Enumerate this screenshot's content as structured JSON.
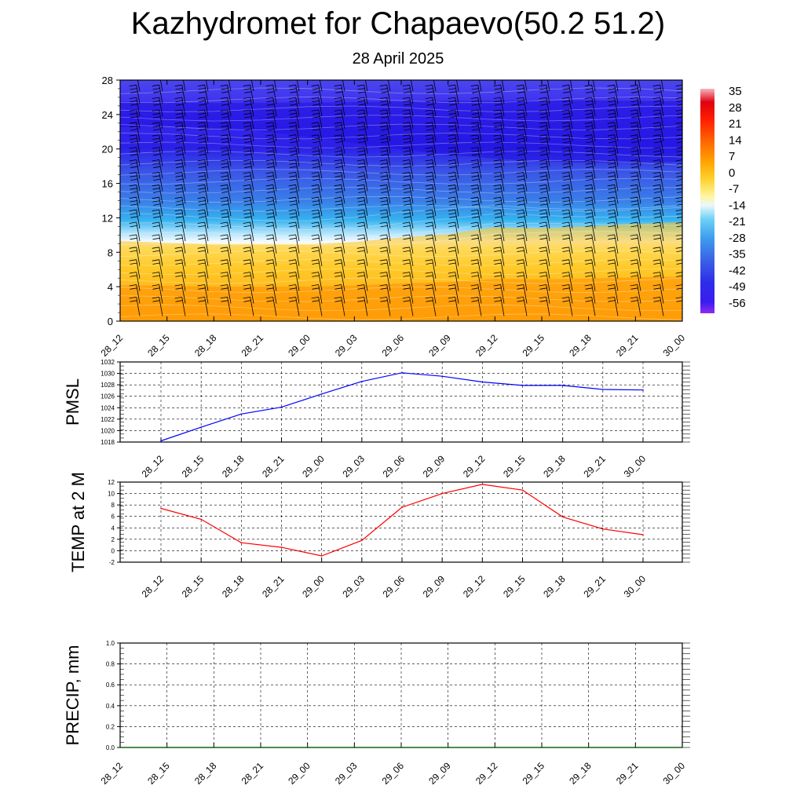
{
  "header": {
    "title": "Kazhydromet for Chapaevo(50.2 51.2)",
    "subtitle": "28 April 2025"
  },
  "time_labels": [
    "28_12",
    "28_15",
    "28_18",
    "28_21",
    "29_00",
    "29_03",
    "29_06",
    "29_09",
    "29_12",
    "29_15",
    "29_18",
    "29_21",
    "30_00"
  ],
  "chart_data": [
    {
      "type": "heatmap",
      "name": "cross-section",
      "title": "",
      "xlabel": "",
      "ylabel": "",
      "categories": [
        "28_12",
        "28_15",
        "28_18",
        "28_21",
        "29_00",
        "29_03",
        "29_06",
        "29_09",
        "29_12",
        "29_15",
        "29_18",
        "29_21",
        "30_00"
      ],
      "yticks": [
        0,
        4,
        8,
        12,
        16,
        20,
        24,
        28
      ],
      "ylim": [
        0,
        28
      ],
      "zero_isotherm_height": [
        9.3,
        9.1,
        8.9,
        8.9,
        8.9,
        9.2,
        9.7,
        10.1,
        10.9,
        10.8,
        11.0,
        11.3,
        11.5
      ],
      "colorbar": {
        "labels": [
          "35",
          "28",
          "21",
          "14",
          "7",
          "0",
          "-7",
          "-14",
          "-21",
          "-28",
          "-35",
          "-42",
          "-49",
          "-56"
        ],
        "levels": [
          35,
          28,
          21,
          14,
          7,
          0,
          -7,
          -14,
          -21,
          -28,
          -35,
          -42,
          -49,
          -56
        ]
      },
      "wind_barbs": true
    },
    {
      "type": "line",
      "name": "pmsl",
      "ylabel": "PMSL",
      "categories": [
        "28_12",
        "28_15",
        "28_18",
        "28_21",
        "29_00",
        "29_03",
        "29_06",
        "29_09",
        "29_12",
        "29_15",
        "29_18",
        "29_21",
        "30_00"
      ],
      "values": [
        1018.2,
        1020.6,
        1022.9,
        1024.1,
        1026.4,
        1028.6,
        1030.1,
        1029.5,
        1028.5,
        1027.9,
        1027.9,
        1027.2,
        1027.1
      ],
      "ylim": [
        1018,
        1032
      ],
      "yticks": [
        1018,
        1020,
        1022,
        1024,
        1026,
        1028,
        1030,
        1032
      ],
      "grid": true,
      "color": "#0000ff"
    },
    {
      "type": "line",
      "name": "temp2m",
      "ylabel": "TEMP at 2 M",
      "categories": [
        "28_12",
        "28_15",
        "28_18",
        "28_21",
        "29_00",
        "29_03",
        "29_06",
        "29_09",
        "29_12",
        "29_15",
        "29_18",
        "29_21",
        "30_00"
      ],
      "values": [
        7.4,
        5.5,
        1.4,
        0.6,
        -0.9,
        1.8,
        7.6,
        10.0,
        11.6,
        10.6,
        5.9,
        3.8,
        2.8
      ],
      "ylim": [
        -2,
        12
      ],
      "yticks": [
        -2,
        0,
        2,
        4,
        6,
        8,
        10,
        12
      ],
      "grid": true,
      "color": "#ff0000"
    },
    {
      "type": "line",
      "name": "precip",
      "ylabel": "PRECIP, mm",
      "categories": [
        "28_12",
        "28_15",
        "28_18",
        "28_21",
        "29_00",
        "29_03",
        "29_06",
        "29_09",
        "29_12",
        "29_15",
        "29_18",
        "29_21",
        "30_00"
      ],
      "values": [
        0,
        0,
        0,
        0,
        0,
        0,
        0,
        0,
        0,
        0,
        0,
        0,
        0
      ],
      "ylim": [
        0,
        1
      ],
      "yticks": [
        "0.0",
        "0.2",
        "0.4",
        "0.6",
        "0.8",
        "1.0"
      ],
      "grid": true,
      "color": "#006400"
    }
  ]
}
